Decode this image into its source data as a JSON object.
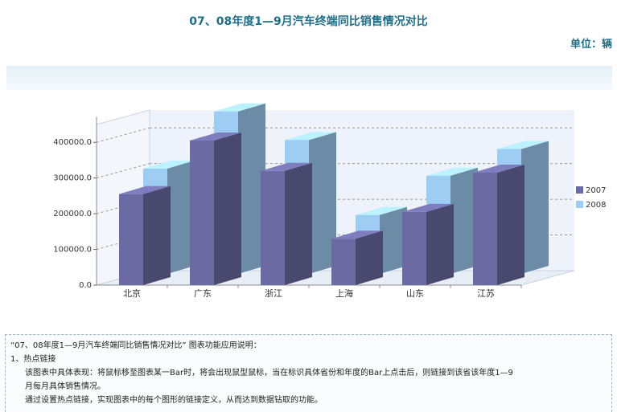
{
  "header": {
    "title": "07、08年度1—9月汽车终端同比销售情况对比",
    "unit": "单位：辆"
  },
  "chart_data": {
    "type": "bar",
    "categories": [
      "北京",
      "广东",
      "浙江",
      "上海",
      "山东",
      "江苏"
    ],
    "series": [
      {
        "name": "2007",
        "values": [
          255000,
          405000,
          320000,
          130000,
          205000,
          315000
        ],
        "color": "#6b6aa3"
      },
      {
        "name": "2008",
        "values": [
          295000,
          455000,
          375000,
          165000,
          275000,
          350000
        ],
        "color": "#9ecdf4"
      }
    ],
    "y_ticks": [
      "0.0",
      "100000.0",
      "200000.0",
      "300000.0",
      "400000.0"
    ],
    "ylim": [
      0,
      450000
    ],
    "grid": true,
    "legend": "right"
  },
  "description": {
    "heading": "“07、08年度1—9月汽车终端同比销售情况对比” 图表功能应用说明：",
    "item_title": "1、热点链接",
    "line1": "该图表中具体表现：将鼠标移至图表某一Bar时，将会出现鼠型鼠标，当在标识具体省份和年度的Bar上点击后，则链接到该省该年度1—9",
    "line2": "月每月具体销售情况。",
    "line3": "通过设置热点链接，实现图表中的每个图形的链接定义，从而达到数据钻取的功能。"
  }
}
